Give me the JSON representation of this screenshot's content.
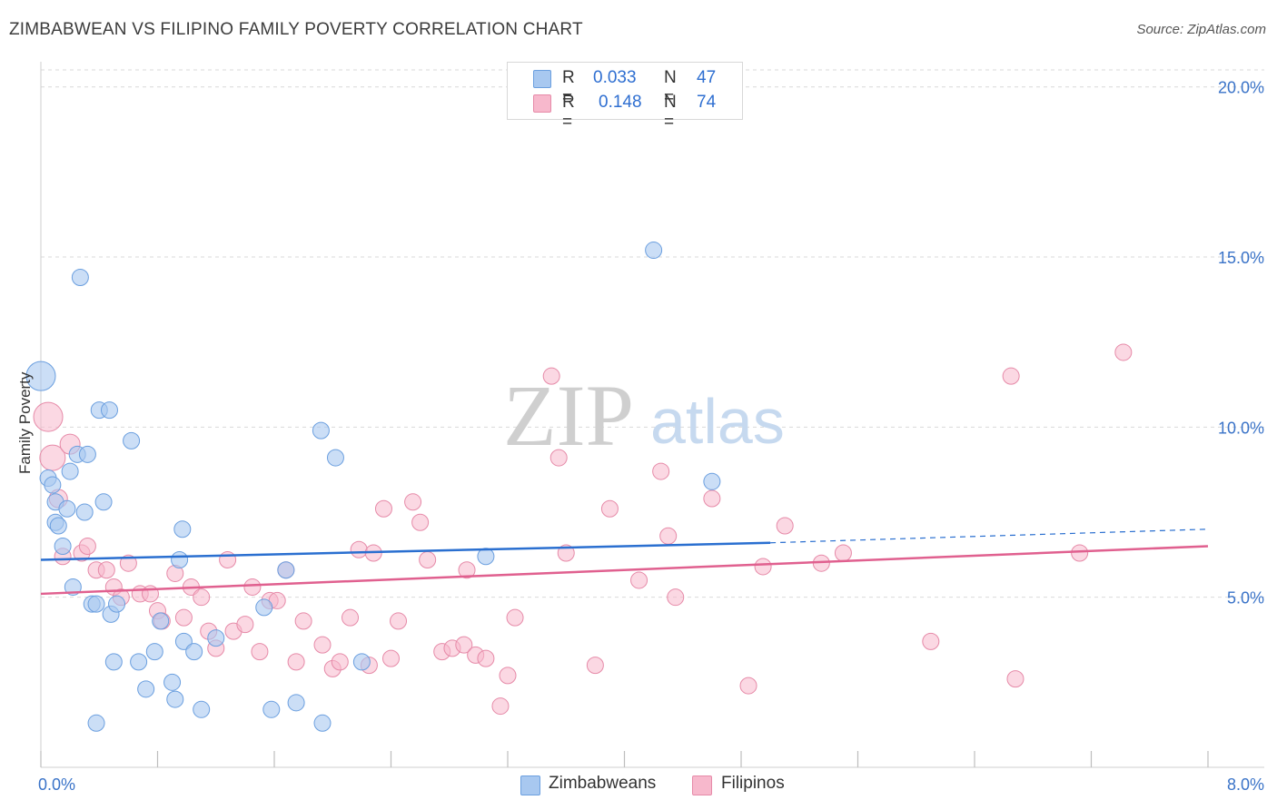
{
  "header": {
    "title": "ZIMBABWEAN VS FILIPINO FAMILY POVERTY CORRELATION CHART",
    "source": "Source: ZipAtlas.com"
  },
  "legend": {
    "zimbabwe": {
      "r_label": "R =",
      "r_value": "0.033",
      "n_label": "N =",
      "n_value": "47"
    },
    "filipino": {
      "r_label": "R =",
      "r_value": "0.148",
      "n_label": "N =",
      "n_value": "74"
    }
  },
  "bottom_legend": {
    "zimbabwe": "Zimbabweans",
    "filipino": "Filipinos"
  },
  "watermark": {
    "zip": "ZIP",
    "atlas": "atlas"
  },
  "colors": {
    "blue_fill": "#a8c8f0",
    "blue_stroke": "#6b9fdf",
    "blue_line": "#2a6fd0",
    "pink_fill": "#f7b8cc",
    "pink_stroke": "#e68aa8",
    "pink_line": "#e0608f",
    "tick_label": "#3a73c8",
    "grid": "#d9d9d9"
  },
  "chart_data": {
    "type": "scatter",
    "title": "ZIMBABWEAN VS FILIPINO FAMILY POVERTY CORRELATION CHART",
    "xlabel": "",
    "ylabel": "Family Poverty",
    "xlim": [
      0,
      8
    ],
    "ylim": [
      0,
      20.5
    ],
    "x_tick_labels": [
      "0.0%",
      "8.0%"
    ],
    "y_ticks": [
      5,
      10,
      15,
      20
    ],
    "y_tick_labels": [
      "5.0%",
      "10.0%",
      "15.0%",
      "20.0%"
    ],
    "grid": true,
    "legend_position": "top-center",
    "series": [
      {
        "name": "Zimbabweans",
        "r": 0.033,
        "n": 47,
        "trend": {
          "x0": 0,
          "y0": 6.1,
          "x1": 5.0,
          "y1": 6.6,
          "dashed_to_x": 8.0,
          "dashed_to_y": 7.0
        },
        "points": [
          [
            0.0,
            11.5,
            16
          ],
          [
            0.05,
            8.5,
            9
          ],
          [
            0.08,
            8.3,
            9
          ],
          [
            0.1,
            7.8,
            9
          ],
          [
            0.1,
            7.2,
            9
          ],
          [
            0.12,
            7.1,
            9
          ],
          [
            0.15,
            6.5,
            9
          ],
          [
            0.18,
            7.6,
            9
          ],
          [
            0.2,
            8.7,
            9
          ],
          [
            0.22,
            5.3,
            9
          ],
          [
            0.25,
            9.2,
            9
          ],
          [
            0.27,
            14.4,
            9
          ],
          [
            0.3,
            7.5,
            9
          ],
          [
            0.32,
            9.2,
            9
          ],
          [
            0.35,
            4.8,
            9
          ],
          [
            0.38,
            1.3,
            9
          ],
          [
            0.38,
            4.8,
            9
          ],
          [
            0.4,
            10.5,
            9
          ],
          [
            0.43,
            7.8,
            9
          ],
          [
            0.47,
            10.5,
            9
          ],
          [
            0.48,
            4.5,
            9
          ],
          [
            0.5,
            3.1,
            9
          ],
          [
            0.52,
            4.8,
            9
          ],
          [
            0.62,
            9.6,
            9
          ],
          [
            0.67,
            3.1,
            9
          ],
          [
            0.72,
            2.3,
            9
          ],
          [
            0.78,
            3.4,
            9
          ],
          [
            0.82,
            4.3,
            9
          ],
          [
            0.9,
            2.5,
            9
          ],
          [
            0.92,
            2.0,
            9
          ],
          [
            0.95,
            6.1,
            9
          ],
          [
            0.97,
            7.0,
            9
          ],
          [
            0.98,
            3.7,
            9
          ],
          [
            1.05,
            3.4,
            9
          ],
          [
            1.1,
            1.7,
            9
          ],
          [
            1.2,
            3.8,
            9
          ],
          [
            1.53,
            4.7,
            9
          ],
          [
            1.58,
            1.7,
            9
          ],
          [
            1.68,
            5.8,
            9
          ],
          [
            1.75,
            1.9,
            9
          ],
          [
            1.92,
            9.9,
            9
          ],
          [
            1.93,
            1.3,
            9
          ],
          [
            2.02,
            9.1,
            9
          ],
          [
            2.2,
            3.1,
            9
          ],
          [
            3.05,
            6.2,
            9
          ],
          [
            4.2,
            15.2,
            9
          ],
          [
            4.6,
            8.4,
            9
          ]
        ]
      },
      {
        "name": "Filipinos",
        "r": 0.148,
        "n": 74,
        "trend": {
          "x0": 0,
          "y0": 5.1,
          "x1": 8.0,
          "y1": 6.5
        },
        "points": [
          [
            0.05,
            10.3,
            16
          ],
          [
            0.08,
            9.1,
            14
          ],
          [
            0.12,
            7.9,
            10
          ],
          [
            0.15,
            6.2,
            9
          ],
          [
            0.2,
            9.5,
            11
          ],
          [
            0.28,
            6.3,
            9
          ],
          [
            0.32,
            6.5,
            9
          ],
          [
            0.38,
            5.8,
            9
          ],
          [
            0.45,
            5.8,
            9
          ],
          [
            0.5,
            5.3,
            9
          ],
          [
            0.55,
            5.0,
            9
          ],
          [
            0.6,
            6.0,
            9
          ],
          [
            0.68,
            5.1,
            9
          ],
          [
            0.75,
            5.1,
            9
          ],
          [
            0.8,
            4.6,
            9
          ],
          [
            0.83,
            4.3,
            9
          ],
          [
            0.92,
            5.7,
            9
          ],
          [
            0.98,
            4.4,
            9
          ],
          [
            1.03,
            5.3,
            9
          ],
          [
            1.1,
            5.0,
            9
          ],
          [
            1.15,
            4.0,
            9
          ],
          [
            1.2,
            3.5,
            9
          ],
          [
            1.28,
            6.1,
            9
          ],
          [
            1.32,
            4.0,
            9
          ],
          [
            1.4,
            4.2,
            9
          ],
          [
            1.45,
            5.3,
            9
          ],
          [
            1.5,
            3.4,
            9
          ],
          [
            1.57,
            4.9,
            9
          ],
          [
            1.62,
            4.9,
            9
          ],
          [
            1.68,
            5.8,
            9
          ],
          [
            1.75,
            3.1,
            9
          ],
          [
            1.8,
            4.3,
            9
          ],
          [
            1.93,
            3.6,
            9
          ],
          [
            2.0,
            2.9,
            9
          ],
          [
            2.05,
            3.1,
            9
          ],
          [
            2.12,
            4.4,
            9
          ],
          [
            2.18,
            6.4,
            9
          ],
          [
            2.25,
            3.0,
            9
          ],
          [
            2.28,
            6.3,
            9
          ],
          [
            2.35,
            7.6,
            9
          ],
          [
            2.4,
            3.2,
            9
          ],
          [
            2.45,
            4.3,
            9
          ],
          [
            2.55,
            7.8,
            9
          ],
          [
            2.6,
            7.2,
            9
          ],
          [
            2.65,
            6.1,
            9
          ],
          [
            2.75,
            3.4,
            9
          ],
          [
            2.82,
            3.5,
            9
          ],
          [
            2.9,
            3.6,
            9
          ],
          [
            2.92,
            5.8,
            9
          ],
          [
            2.98,
            3.3,
            9
          ],
          [
            3.05,
            3.2,
            9
          ],
          [
            3.15,
            1.8,
            9
          ],
          [
            3.2,
            2.7,
            9
          ],
          [
            3.25,
            4.4,
            9
          ],
          [
            3.5,
            11.5,
            9
          ],
          [
            3.55,
            9.1,
            9
          ],
          [
            3.6,
            6.3,
            9
          ],
          [
            3.8,
            3.0,
            9
          ],
          [
            3.9,
            7.6,
            9
          ],
          [
            4.1,
            5.5,
            9
          ],
          [
            4.25,
            8.7,
            9
          ],
          [
            4.3,
            6.8,
            9
          ],
          [
            4.35,
            5.0,
            9
          ],
          [
            4.6,
            7.9,
            9
          ],
          [
            4.85,
            2.4,
            9
          ],
          [
            4.95,
            5.9,
            9
          ],
          [
            5.1,
            7.1,
            9
          ],
          [
            5.35,
            6.0,
            9
          ],
          [
            5.5,
            6.3,
            9
          ],
          [
            6.1,
            3.7,
            9
          ],
          [
            6.65,
            11.5,
            9
          ],
          [
            6.68,
            2.6,
            9
          ],
          [
            7.12,
            6.3,
            9
          ],
          [
            7.42,
            12.2,
            9
          ]
        ]
      }
    ]
  }
}
